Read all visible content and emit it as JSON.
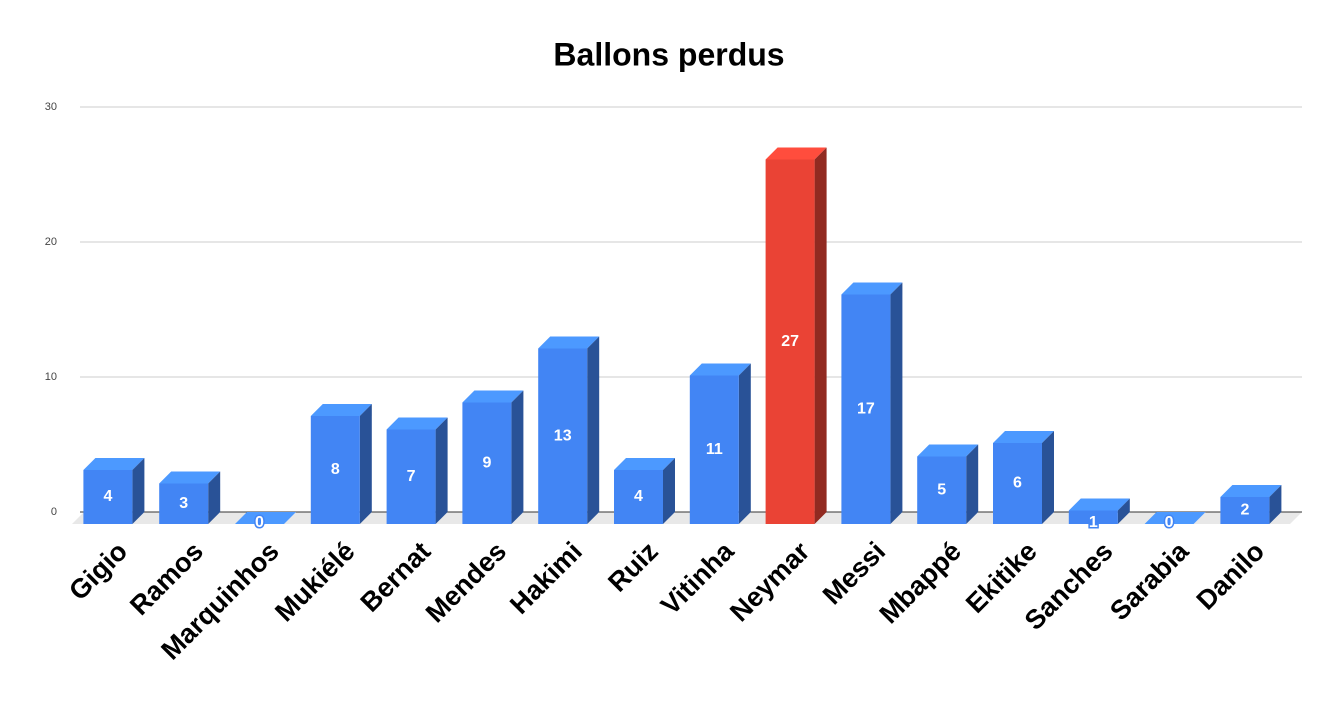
{
  "chart_data": {
    "type": "bar3d",
    "title": "Ballons perdus",
    "categories": [
      "Gigio",
      "Ramos",
      "Marquinhos",
      "Mukiélé",
      "Bernat",
      "Mendes",
      "Hakimi",
      "Ruiz",
      "Vitinha",
      "Neymar",
      "Messi",
      "Mbappé",
      "Ekitike",
      "Sanches",
      "Sarabia",
      "Danilo"
    ],
    "values": [
      4,
      3,
      0,
      8,
      7,
      9,
      13,
      4,
      11,
      27,
      17,
      5,
      6,
      1,
      0,
      2
    ],
    "colors": [
      "#4285f4",
      "#4285f4",
      "#4285f4",
      "#4285f4",
      "#4285f4",
      "#4285f4",
      "#4285f4",
      "#4285f4",
      "#4285f4",
      "#ea4335",
      "#4285f4",
      "#4285f4",
      "#4285f4",
      "#4285f4",
      "#4285f4",
      "#4285f4"
    ],
    "ylim": [
      0,
      30
    ],
    "yticks": [
      0,
      10,
      20,
      30
    ],
    "grid": true
  }
}
